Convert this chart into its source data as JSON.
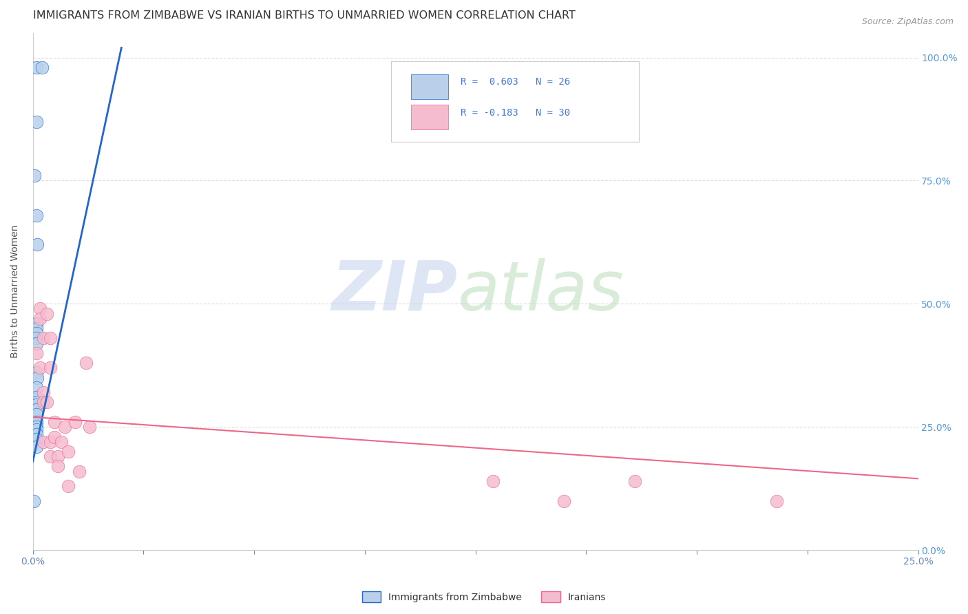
{
  "title": "IMMIGRANTS FROM ZIMBABWE VS IRANIAN BIRTHS TO UNMARRIED WOMEN CORRELATION CHART",
  "source": "Source: ZipAtlas.com",
  "ylabel": "Births to Unmarried Women",
  "blue_color": "#b8d0ea",
  "pink_color": "#f5bcd0",
  "trend_blue": "#2266cc",
  "trend_pink": "#ee6688",
  "legend_text_color": "#4477dd",
  "blue_x": [
    0.001,
    0.0025,
    0.001,
    0.0005,
    0.001,
    0.0012,
    0.001,
    0.001,
    0.001,
    0.0008,
    0.001,
    0.001,
    0.0012,
    0.001,
    0.001,
    0.001,
    0.001,
    0.001,
    0.001,
    0.001,
    0.001,
    0.001,
    0.001,
    0.001,
    0.001,
    0.0003
  ],
  "blue_y": [
    0.98,
    0.98,
    0.87,
    0.76,
    0.68,
    0.62,
    0.46,
    0.45,
    0.44,
    0.43,
    0.42,
    0.36,
    0.35,
    0.33,
    0.31,
    0.3,
    0.295,
    0.285,
    0.275,
    0.26,
    0.25,
    0.245,
    0.235,
    0.225,
    0.21,
    0.1
  ],
  "pink_x": [
    0.001,
    0.002,
    0.002,
    0.002,
    0.003,
    0.003,
    0.003,
    0.003,
    0.004,
    0.004,
    0.005,
    0.005,
    0.005,
    0.005,
    0.006,
    0.006,
    0.007,
    0.007,
    0.008,
    0.009,
    0.01,
    0.01,
    0.012,
    0.013,
    0.015,
    0.016,
    0.13,
    0.15,
    0.17,
    0.21
  ],
  "pink_y": [
    0.4,
    0.49,
    0.47,
    0.37,
    0.43,
    0.32,
    0.3,
    0.22,
    0.48,
    0.3,
    0.43,
    0.37,
    0.22,
    0.19,
    0.26,
    0.23,
    0.19,
    0.17,
    0.22,
    0.25,
    0.2,
    0.13,
    0.26,
    0.16,
    0.38,
    0.25,
    0.14,
    0.1,
    0.14,
    0.1
  ],
  "blue_trend_x": [
    0.0,
    0.025
  ],
  "blue_trend_y": [
    0.18,
    1.02
  ],
  "pink_trend_x": [
    0.0,
    0.25
  ],
  "pink_trend_y": [
    0.27,
    0.145
  ],
  "xmin": 0,
  "xmax": 0.25,
  "ymin": 0,
  "ymax": 1.05,
  "grid_color": "#d8d8d8",
  "background_color": "#ffffff",
  "title_fontsize": 11.5,
  "watermark_zip_color": "#c8d8f0",
  "watermark_atlas_color": "#c8e8c8"
}
